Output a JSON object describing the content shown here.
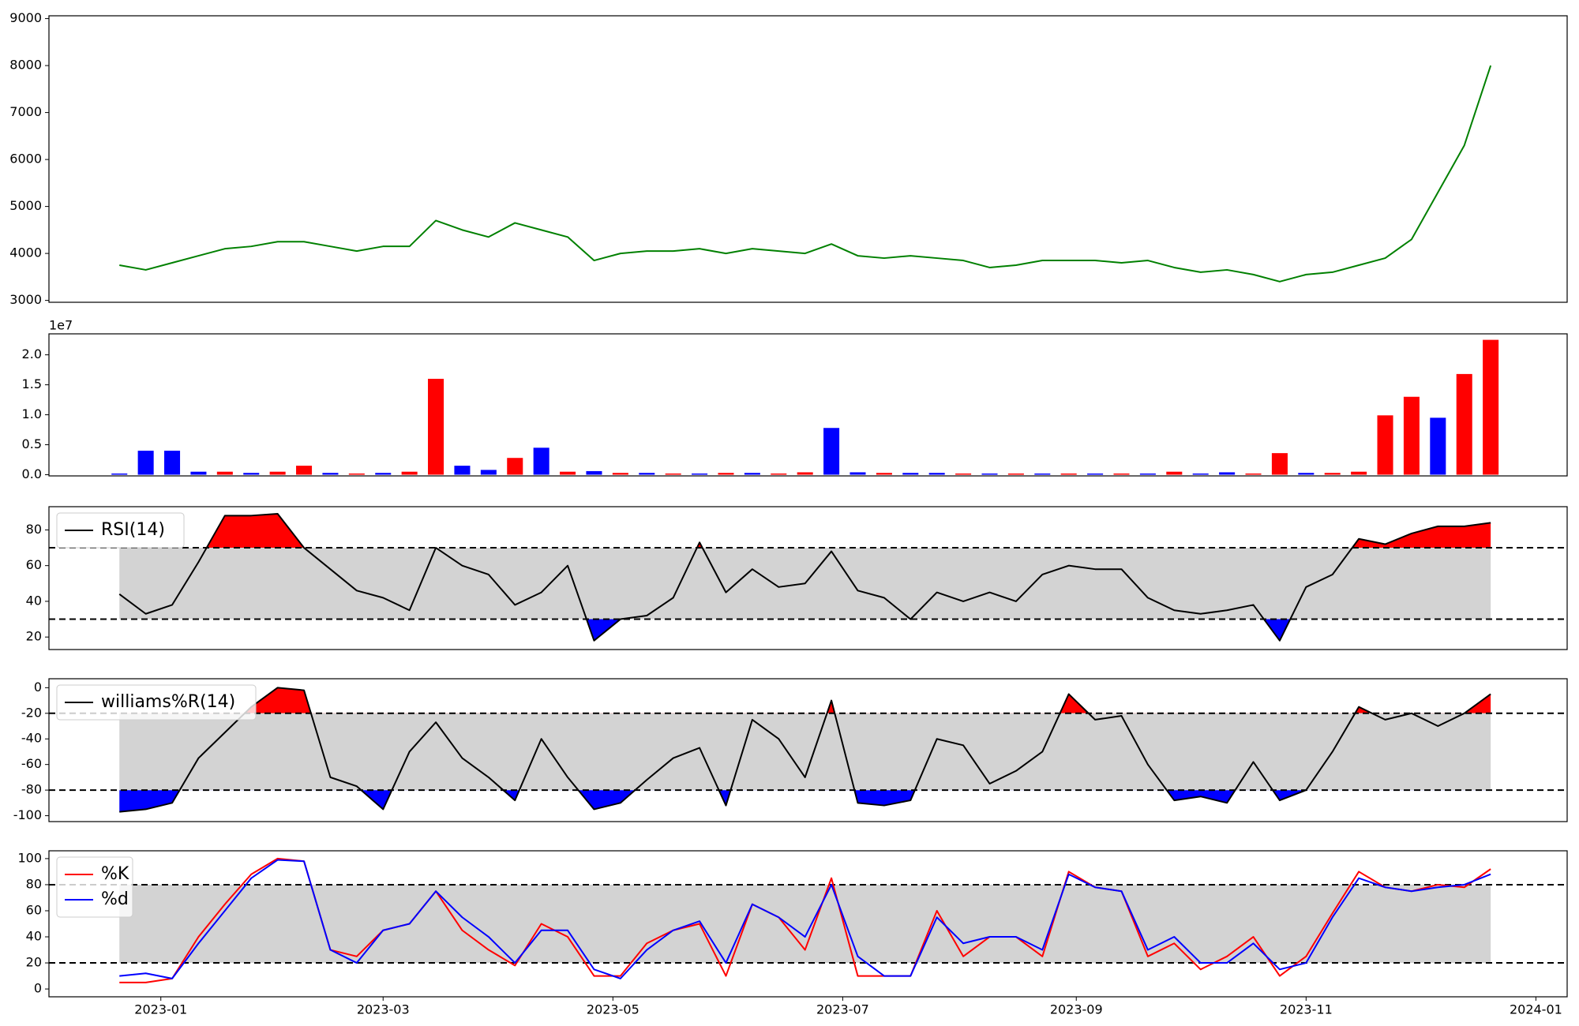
{
  "chart_data": [
    {
      "type": "line",
      "color": "green",
      "x": [
        -11,
        -4,
        3,
        10,
        17,
        24,
        31,
        38,
        45,
        52,
        59,
        66,
        73,
        80,
        87,
        94,
        101,
        108,
        115,
        122,
        129,
        136,
        143,
        150,
        157,
        164,
        171,
        178,
        185,
        192,
        199,
        206,
        213,
        220,
        227,
        234,
        241,
        248,
        255,
        262,
        269,
        276,
        283,
        290,
        297,
        304,
        311,
        318,
        325,
        332,
        339,
        346,
        353
      ],
      "values": [
        3750,
        3650,
        3800,
        3950,
        4100,
        4150,
        4250,
        4250,
        4150,
        4050,
        4150,
        4150,
        4700,
        4500,
        4350,
        4650,
        4500,
        4350,
        3850,
        4000,
        4050,
        4050,
        4100,
        4000,
        4100,
        4050,
        4000,
        4200,
        3950,
        3900,
        3950,
        3900,
        3850,
        3700,
        3750,
        3850,
        3850,
        3850,
        3800,
        3850,
        3700,
        3600,
        3650,
        3550,
        3400,
        3550,
        3600,
        3750,
        3900,
        4300,
        5300,
        6300,
        8000
      ],
      "xlim": [
        -29.7,
        373.3
      ],
      "ylim": [
        2960,
        9060
      ],
      "yticks": [
        3000,
        4000,
        5000,
        6000,
        7000,
        8000,
        9000
      ]
    },
    {
      "type": "bar",
      "offset_label": "1e7",
      "x": [
        -11,
        -4,
        3,
        10,
        17,
        24,
        31,
        38,
        45,
        52,
        59,
        66,
        73,
        80,
        87,
        94,
        101,
        108,
        115,
        122,
        129,
        136,
        143,
        150,
        157,
        164,
        171,
        178,
        185,
        192,
        199,
        206,
        213,
        220,
        227,
        234,
        241,
        248,
        255,
        262,
        269,
        276,
        283,
        290,
        297,
        304,
        311,
        318,
        325,
        332,
        339,
        346,
        353
      ],
      "values": [
        0.02,
        0.4,
        0.4,
        0.05,
        0.05,
        0.03,
        0.05,
        0.15,
        0.03,
        0.02,
        0.03,
        0.05,
        1.6,
        0.15,
        0.08,
        0.28,
        0.45,
        0.05,
        0.06,
        0.03,
        0.03,
        0.02,
        0.02,
        0.03,
        0.03,
        0.02,
        0.04,
        0.78,
        0.04,
        0.03,
        0.03,
        0.03,
        0.02,
        0.02,
        0.02,
        0.02,
        0.02,
        0.02,
        0.02,
        0.02,
        0.05,
        0.02,
        0.04,
        0.02,
        0.36,
        0.03,
        0.03,
        0.05,
        0.99,
        1.3,
        0.95,
        1.68,
        2.25
      ],
      "colors": [
        "blue",
        "blue",
        "blue",
        "blue",
        "red",
        "blue",
        "red",
        "red",
        "blue",
        "red",
        "blue",
        "red",
        "red",
        "blue",
        "blue",
        "red",
        "blue",
        "red",
        "blue",
        "red",
        "blue",
        "red",
        "blue",
        "red",
        "blue",
        "red",
        "red",
        "blue",
        "blue",
        "red",
        "blue",
        "blue",
        "red",
        "blue",
        "red",
        "blue",
        "red",
        "blue",
        "red",
        "blue",
        "red",
        "blue",
        "blue",
        "red",
        "red",
        "blue",
        "red",
        "red",
        "red",
        "red",
        "blue",
        "red",
        "red"
      ],
      "xlim": [
        -29.7,
        373.3
      ],
      "ylim": [
        -0.02,
        2.35
      ],
      "yticks": [
        {
          "value": 0,
          "label": "0.0"
        },
        0.5,
        {
          "value": 1,
          "label": "1.0"
        },
        1.5,
        {
          "value": 2,
          "label": "2.0"
        }
      ]
    },
    {
      "type": "line",
      "legend": "upper left",
      "hlines": [
        70,
        30
      ],
      "band_color": "lightgray",
      "above_color": "red",
      "below_color": "blue",
      "x": [
        -11,
        -4,
        3,
        10,
        17,
        24,
        31,
        38,
        45,
        52,
        59,
        66,
        73,
        80,
        87,
        94,
        101,
        108,
        115,
        122,
        129,
        136,
        143,
        150,
        157,
        164,
        171,
        178,
        185,
        192,
        199,
        206,
        213,
        220,
        227,
        234,
        241,
        248,
        255,
        262,
        269,
        276,
        283,
        290,
        297,
        304,
        311,
        318,
        325,
        332,
        339,
        346,
        353
      ],
      "series": [
        {
          "name": "RSI(14)",
          "color": "black",
          "values": [
            44,
            33,
            38,
            62,
            88,
            88,
            89,
            70,
            58,
            46,
            42,
            35,
            70,
            60,
            55,
            38,
            45,
            60,
            18,
            30,
            32,
            42,
            73,
            45,
            58,
            48,
            50,
            68,
            46,
            42,
            30,
            45,
            40,
            45,
            40,
            55,
            60,
            58,
            58,
            42,
            35,
            33,
            35,
            38,
            18,
            48,
            55,
            75,
            72,
            78,
            82,
            82,
            84
          ]
        }
      ],
      "xlim": [
        -29.7,
        373.3
      ],
      "ylim": [
        13,
        93
      ],
      "yticks": [
        20,
        40,
        60,
        80
      ]
    },
    {
      "type": "line",
      "legend": "upper left",
      "hlines": [
        -20,
        -80
      ],
      "band_color": "lightgray",
      "above_color": "red",
      "below_color": "blue",
      "x": [
        -11,
        -4,
        3,
        10,
        17,
        24,
        31,
        38,
        45,
        52,
        59,
        66,
        73,
        80,
        87,
        94,
        101,
        108,
        115,
        122,
        129,
        136,
        143,
        150,
        157,
        164,
        171,
        178,
        185,
        192,
        199,
        206,
        213,
        220,
        227,
        234,
        241,
        248,
        255,
        262,
        269,
        276,
        283,
        290,
        297,
        304,
        311,
        318,
        325,
        332,
        339,
        346,
        353
      ],
      "series": [
        {
          "name": "williams%R(14)",
          "color": "black",
          "values": [
            -97,
            -95,
            -90,
            -55,
            -35,
            -15,
            0,
            -2,
            -70,
            -77,
            -95,
            -50,
            -27,
            -55,
            -70,
            -88,
            -40,
            -70,
            -95,
            -90,
            -72,
            -55,
            -47,
            -92,
            -25,
            -40,
            -70,
            -10,
            -90,
            -92,
            -88,
            -40,
            -45,
            -75,
            -65,
            -50,
            -5,
            -25,
            -22,
            -60,
            -88,
            -85,
            -90,
            -58,
            -88,
            -80,
            -50,
            -15,
            -25,
            -20,
            -30,
            -20,
            -5
          ]
        }
      ],
      "xlim": [
        -29.7,
        373.3
      ],
      "ylim": [
        -104.6,
        7
      ],
      "yticks": [
        -100,
        -80,
        -60,
        -40,
        -20,
        0
      ]
    },
    {
      "type": "line",
      "legend": "upper left",
      "hlines": [
        80,
        20
      ],
      "band_color": "lightgray",
      "x": [
        -11,
        -4,
        3,
        10,
        17,
        24,
        31,
        38,
        45,
        52,
        59,
        66,
        73,
        80,
        87,
        94,
        101,
        108,
        115,
        122,
        129,
        136,
        143,
        150,
        157,
        164,
        171,
        178,
        185,
        192,
        199,
        206,
        213,
        220,
        227,
        234,
        241,
        248,
        255,
        262,
        269,
        276,
        283,
        290,
        297,
        304,
        311,
        318,
        325,
        332,
        339,
        346,
        353
      ],
      "series": [
        {
          "name": "%K",
          "color": "red",
          "values": [
            5,
            5,
            8,
            40,
            65,
            88,
            100,
            98,
            30,
            25,
            45,
            50,
            75,
            45,
            30,
            18,
            50,
            40,
            10,
            10,
            35,
            45,
            50,
            10,
            65,
            55,
            30,
            85,
            10,
            10,
            10,
            60,
            25,
            40,
            40,
            25,
            90,
            78,
            75,
            25,
            35,
            15,
            25,
            40,
            10,
            25,
            58,
            90,
            78,
            75,
            80,
            78,
            92
          ]
        },
        {
          "name": "%d",
          "color": "blue",
          "values": [
            10,
            12,
            8,
            35,
            60,
            85,
            99,
            98,
            30,
            20,
            45,
            50,
            75,
            55,
            40,
            20,
            45,
            45,
            15,
            8,
            30,
            45,
            52,
            20,
            65,
            55,
            40,
            80,
            25,
            10,
            10,
            55,
            35,
            40,
            40,
            30,
            88,
            78,
            75,
            30,
            40,
            20,
            20,
            35,
            15,
            20,
            55,
            85,
            78,
            75,
            78,
            80,
            88
          ]
        }
      ],
      "xlim": [
        -29.7,
        373.3
      ],
      "ylim": [
        -6,
        106
      ],
      "yticks": [
        0,
        20,
        40,
        60,
        80,
        100
      ],
      "xticks": [
        {
          "value": 0,
          "label": "2023-01"
        },
        {
          "value": 59,
          "label": "2023-03"
        },
        {
          "value": 120,
          "label": "2023-05"
        },
        {
          "value": 181,
          "label": "2023-07"
        },
        {
          "value": 243,
          "label": "2023-09"
        },
        {
          "value": 304,
          "label": "2023-11"
        },
        {
          "value": 365,
          "label": "2024-01"
        }
      ]
    }
  ]
}
